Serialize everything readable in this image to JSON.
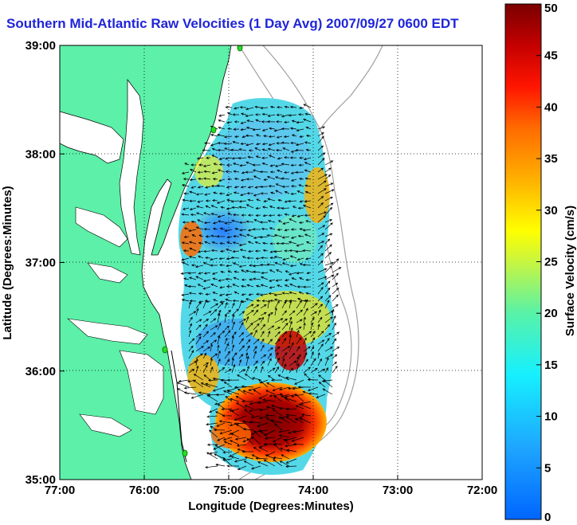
{
  "title": "Southern Mid-Atlantic Raw Velocities (1 Day Avg) 2007/09/27 0600 EDT",
  "xlabel": "Longitude (Degrees:Minutes)",
  "ylabel": "Latitude (Degrees:Minutes)",
  "x_ticks": [
    "77:00",
    "76:00",
    "75:00",
    "74:00",
    "73:00",
    "72:00"
  ],
  "y_ticks": [
    "39:00",
    "38:00",
    "37:00",
    "36:00",
    "35:00"
  ],
  "colorbar": {
    "label": "Surface Velocity (cm/s)",
    "ticks": [
      "50",
      "45",
      "40",
      "35",
      "30",
      "25",
      "20",
      "15",
      "10",
      "5",
      "0"
    ],
    "range": [
      0,
      50
    ]
  },
  "map": {
    "lon_range": [
      -77,
      -72
    ],
    "lat_range": [
      35,
      39
    ],
    "land_color": "#5cf0a8",
    "water_color": "#ffffff",
    "station_color": "#22dd22"
  }
}
